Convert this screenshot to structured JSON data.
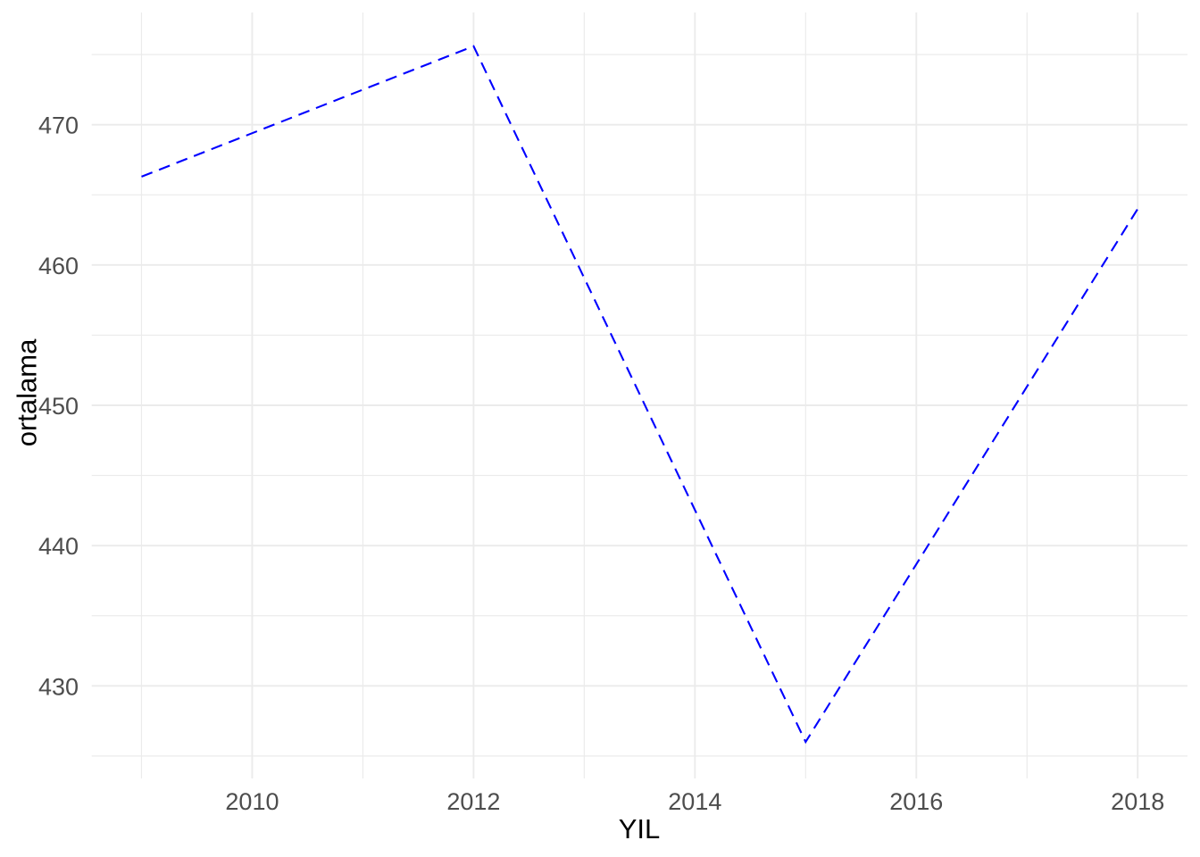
{
  "chart_data": {
    "type": "line",
    "x": [
      2009,
      2012,
      2015,
      2018
    ],
    "values": [
      466.3,
      475.6,
      426.0,
      464.0
    ],
    "title": "",
    "xlabel": "YIL",
    "ylabel": "ortalama",
    "x_tick_labels": [
      "2010",
      "2012",
      "2014",
      "2016",
      "2018"
    ],
    "x_ticks": [
      2010,
      2012,
      2014,
      2016,
      2018
    ],
    "x_minor_ticks": [
      2009,
      2011,
      2013,
      2015,
      2017
    ],
    "y_tick_labels": [
      "430",
      "440",
      "450",
      "460",
      "470"
    ],
    "y_ticks": [
      430,
      440,
      450,
      460,
      470
    ],
    "y_minor_ticks": [
      425,
      435,
      445,
      455,
      465,
      475
    ],
    "xlim": [
      2008.55,
      2018.45
    ],
    "ylim": [
      423.4,
      478.0
    ],
    "grid": "major and minor, no axis lines, no tick marks",
    "legend": "none",
    "line_color": "#0000FF",
    "line_style": "dashed",
    "background_color": "#FFFFFF",
    "grid_color": "#EBEBEB",
    "tick_label_color": "#4D4D4D",
    "axis_title_color": "#000000"
  }
}
